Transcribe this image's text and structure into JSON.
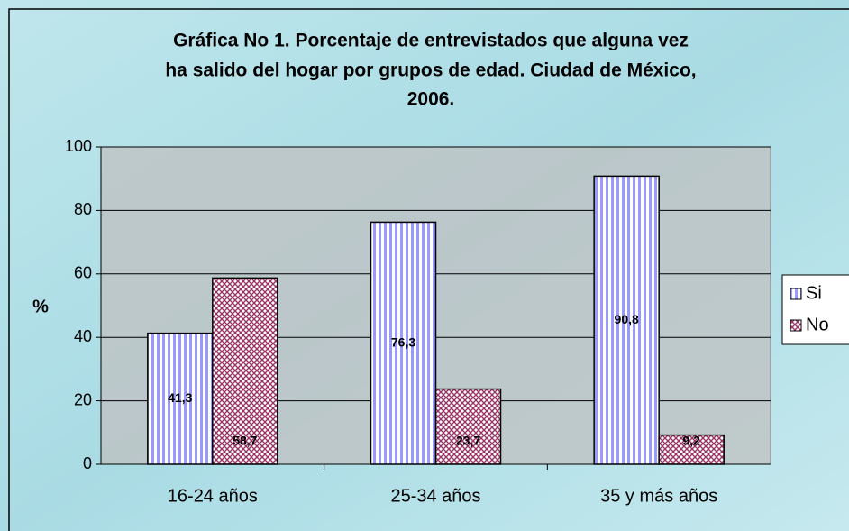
{
  "chart_data": {
    "type": "bar",
    "title": [
      "Gráfica No 1.  Porcentaje de entrevistados que alguna vez",
      "ha salido del hogar por grupos de edad. Ciudad de México,",
      "2006."
    ],
    "ylabel": "%",
    "categories": [
      "16-24 años",
      "25-34 años",
      "35 y más años"
    ],
    "series": [
      {
        "name": "Si",
        "color": "#9999ff",
        "values": [
          41.3,
          76.3,
          90.8
        ],
        "value_labels": [
          "41,3",
          "76,3",
          "90,8"
        ]
      },
      {
        "name": "No",
        "color": "#993366",
        "values": [
          58.7,
          23.7,
          9.2
        ],
        "value_labels": [
          "58,7",
          "23,7",
          "9,2"
        ]
      }
    ],
    "ylim": [
      0,
      100
    ],
    "yticks": [
      0,
      20,
      40,
      60,
      80,
      100
    ],
    "grid": true,
    "legend": "right"
  }
}
